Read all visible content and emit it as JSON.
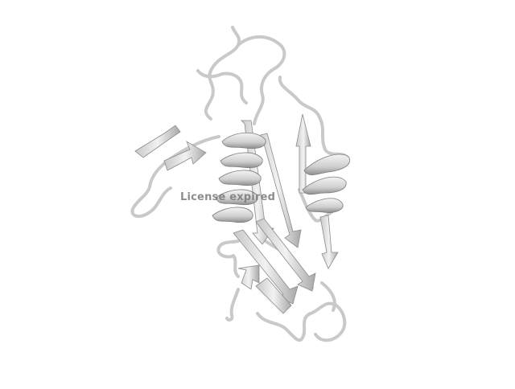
{
  "viewer": {
    "background": "#ffffff",
    "watermark_text": "License expired",
    "model_color": "#d8d8d8",
    "model_shade": "#9a9a9a"
  }
}
